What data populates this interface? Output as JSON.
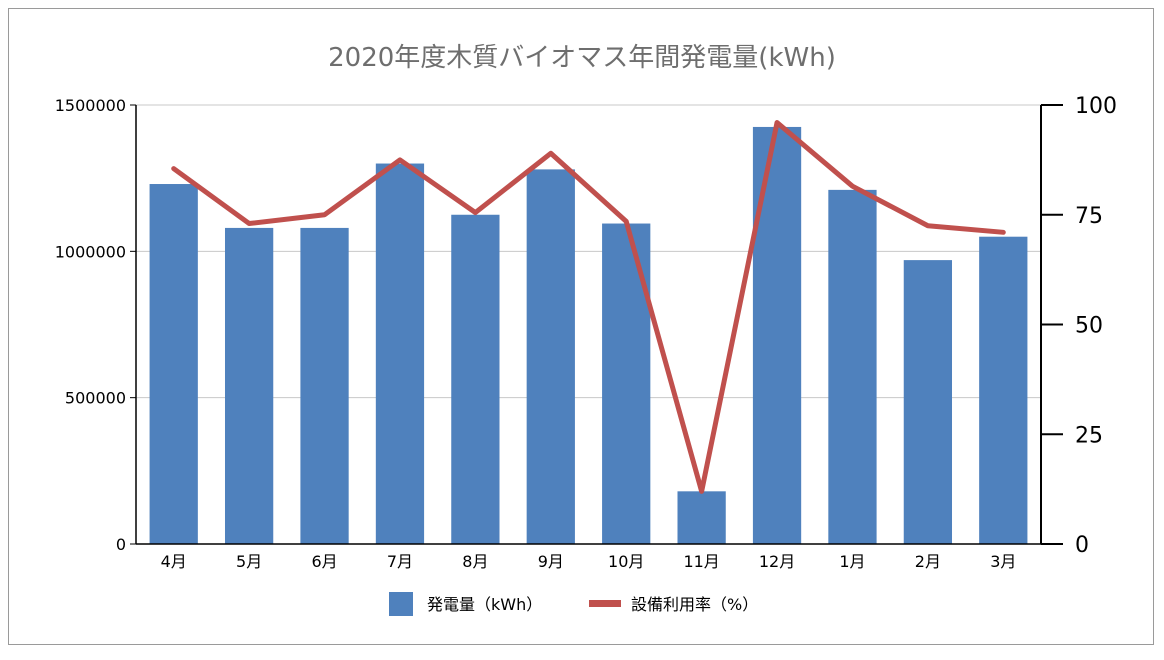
{
  "chart_data": {
    "type": "bar",
    "title": "2020年度木質バイオマス年間発電量(kWh)",
    "categories": [
      "4月",
      "5月",
      "6月",
      "7月",
      "8月",
      "9月",
      "10月",
      "11月",
      "12月",
      "1月",
      "2月",
      "3月"
    ],
    "series": [
      {
        "name": "発電量（kWh）",
        "type": "bar",
        "axis": "left",
        "color": "#4f81bd",
        "values": [
          1230000,
          1080000,
          1080000,
          1300000,
          1125000,
          1280000,
          1095000,
          180000,
          1425000,
          1210000,
          970000,
          1050000
        ]
      },
      {
        "name": "設備利用率（%）",
        "type": "line",
        "axis": "right",
        "color": "#c0504d",
        "values": [
          85.5,
          73,
          75,
          87.5,
          75.5,
          89,
          73.5,
          12,
          96,
          81.5,
          72.5,
          71
        ]
      }
    ],
    "y_left": {
      "min": 0,
      "max": 1500000,
      "ticks": [
        "0",
        "500000",
        "1000000",
        "1500000"
      ]
    },
    "y_right": {
      "min": 0,
      "max": 100,
      "ticks": [
        "0",
        "25",
        "50",
        "75",
        "100"
      ]
    },
    "grid": true,
    "legend": "bottom"
  }
}
